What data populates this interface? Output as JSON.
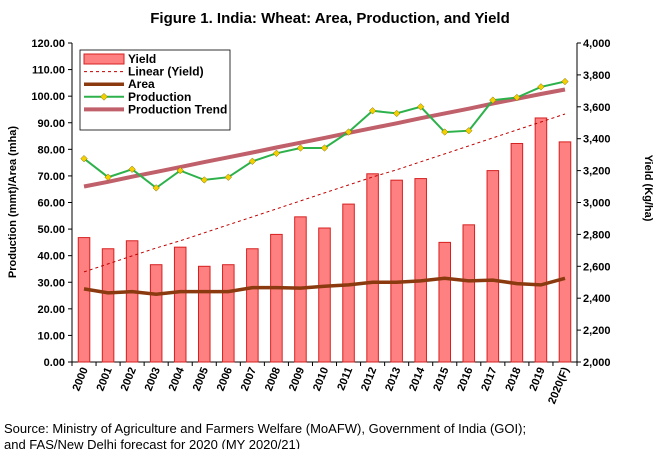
{
  "source_lines": [
    "Source: Ministry of Agriculture and Farmers Welfare (MoAFW), Government of India (GOI);",
    "and FAS/New Delhi forecast for 2020 (MY 2020/21)"
  ],
  "chart_data": {
    "type": "bar",
    "title": "Figure 1. India: Wheat: Area, Production, and Yield",
    "categories": [
      "2000",
      "2001",
      "2002",
      "2003",
      "2004",
      "2005",
      "2006",
      "2007",
      "2008",
      "2009",
      "2010",
      "2011",
      "2012",
      "2013",
      "2014",
      "2015",
      "2016",
      "2017",
      "2018",
      "2019",
      "2020(F)"
    ],
    "ylabel": "Production (mmt)/Area (mha)",
    "y2label": "Yield (Kg/ha)",
    "ylim": [
      0,
      120
    ],
    "y2lim": [
      2000,
      4000
    ],
    "yticks": [
      "0.00",
      "10.00",
      "20.00",
      "30.00",
      "40.00",
      "50.00",
      "60.00",
      "70.00",
      "80.00",
      "90.00",
      "100.00",
      "110.00",
      "120.00"
    ],
    "y2ticks": [
      "2,000",
      "2,200",
      "2,400",
      "2,600",
      "2,800",
      "3,000",
      "3,200",
      "3,400",
      "3,600",
      "3,800",
      "4,000"
    ],
    "grid": false,
    "legend_position": "top-left",
    "series": [
      {
        "name": "Yield",
        "type": "bar",
        "axis": "right",
        "color": "#ff8080",
        "values": [
          2780,
          2710,
          2760,
          2610,
          2720,
          2600,
          2610,
          2710,
          2800,
          2910,
          2840,
          2990,
          3180,
          3140,
          3150,
          2750,
          2860,
          3200,
          3370,
          3530,
          3380
        ]
      },
      {
        "name": "Linear (Yield)",
        "type": "dashed-line",
        "axis": "right",
        "color": "#c00000",
        "values": [
          2565,
          2615,
          2665,
          2715,
          2760,
          2810,
          2860,
          2910,
          2960,
          3010,
          3060,
          3110,
          3160,
          3205,
          3255,
          3305,
          3355,
          3405,
          3455,
          3505,
          3555
        ]
      },
      {
        "name": "Area",
        "type": "line",
        "axis": "left",
        "color": "#8b3a0f",
        "values": [
          27.5,
          26.0,
          26.5,
          25.5,
          26.5,
          26.5,
          26.5,
          28.0,
          28.0,
          27.8,
          28.5,
          29.0,
          30.0,
          30.0,
          30.5,
          31.5,
          30.5,
          30.8,
          29.5,
          29.0,
          31.5
        ]
      },
      {
        "name": "Production",
        "type": "line-marker",
        "axis": "left",
        "color": "#2db14b",
        "marker_color": "#f5d000",
        "values": [
          76.5,
          69.5,
          72.5,
          65.5,
          72.0,
          68.5,
          69.5,
          75.5,
          78.5,
          80.5,
          80.5,
          86.5,
          94.5,
          93.5,
          96.0,
          86.5,
          87.0,
          98.5,
          99.5,
          103.5,
          105.5
        ]
      },
      {
        "name": "Production Trend",
        "type": "line",
        "axis": "left",
        "color": "#c0606a",
        "values": [
          66.0,
          67.8,
          69.7,
          71.5,
          73.3,
          75.2,
          77.0,
          78.8,
          80.7,
          82.5,
          84.3,
          86.2,
          88.0,
          89.8,
          91.7,
          93.5,
          95.3,
          97.2,
          99.0,
          100.8,
          102.5
        ]
      }
    ]
  }
}
